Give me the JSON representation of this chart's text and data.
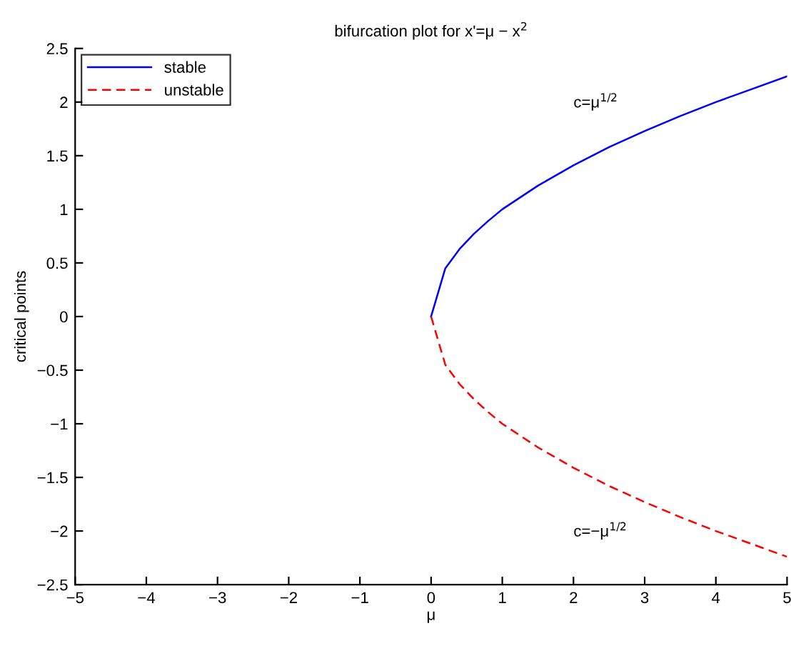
{
  "chart_data": {
    "type": "line",
    "title": "bifurcation plot for x'=μ − x$^{2}$",
    "xlabel": "μ",
    "ylabel": "critical points",
    "x": [
      0,
      0.2,
      0.4,
      0.6,
      0.8,
      1,
      1.5,
      2,
      2.5,
      3,
      3.5,
      4,
      4.5,
      5
    ],
    "series": [
      {
        "name": "stable",
        "color": "#0000ff",
        "line_style": "solid",
        "values": [
          0,
          0.45,
          0.63,
          0.77,
          0.89,
          1,
          1.22,
          1.41,
          1.58,
          1.73,
          1.87,
          2,
          2.12,
          2.24
        ]
      },
      {
        "name": "unstable",
        "color": "#ff0000",
        "line_style": "dashed",
        "values": [
          0,
          -0.45,
          -0.63,
          -0.77,
          -0.89,
          -1,
          -1.22,
          -1.41,
          -1.58,
          -1.73,
          -1.87,
          -2,
          -2.12,
          -2.24
        ]
      }
    ],
    "annotations": [
      "c=μ$^{1/2}$",
      "c=−μ$^{1/2}$"
    ],
    "xlim": [
      -5,
      5
    ],
    "ylim": [
      -2.5,
      2.5
    ],
    "xticks": [
      {
        "value": -5,
        "label": "−5"
      },
      {
        "value": -4,
        "label": "−4"
      },
      {
        "value": -3,
        "label": "−3"
      },
      {
        "value": -2,
        "label": "−2"
      },
      {
        "value": -1,
        "label": "−1"
      },
      0,
      1,
      2,
      3,
      4,
      5
    ],
    "yticks": [
      {
        "value": -2.5,
        "label": "−2.5"
      },
      {
        "value": -2,
        "label": "−2"
      },
      {
        "value": -1.5,
        "label": "−1.5"
      },
      {
        "value": -1,
        "label": "−1"
      },
      {
        "value": -0.5,
        "label": "−0.5"
      },
      0,
      0.5,
      1,
      1.5,
      2,
      2.5
    ],
    "grid": false,
    "legend": "top left",
    "marker": "none"
  }
}
